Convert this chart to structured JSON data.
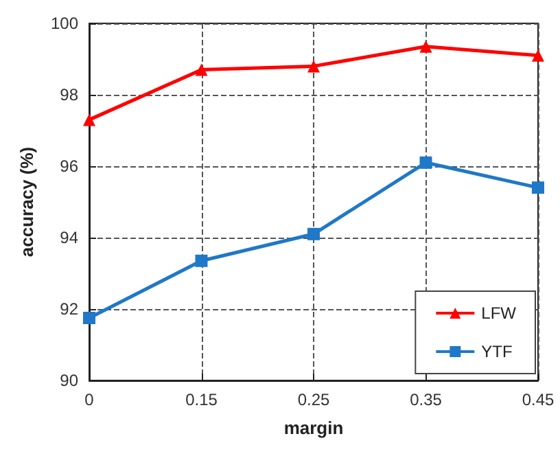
{
  "chart_data": {
    "type": "line",
    "xlabel": "margin",
    "ylabel": "accuracy (%)",
    "categories": [
      "0",
      "0.15",
      "0.25",
      "0.35",
      "0.45"
    ],
    "series": [
      {
        "name": "LFW",
        "color": "#ff0000",
        "marker": "triangle",
        "values": [
          97.3,
          98.7,
          98.8,
          99.35,
          99.1
        ]
      },
      {
        "name": "YTF",
        "color": "#1f78c8",
        "marker": "square",
        "values": [
          91.75,
          93.35,
          94.1,
          96.1,
          95.4
        ]
      }
    ],
    "ylim": [
      90,
      100
    ],
    "yticks": [
      90,
      92,
      94,
      96,
      98,
      100
    ],
    "grid": true,
    "legend": "bottom right",
    "line_style": "solid"
  }
}
